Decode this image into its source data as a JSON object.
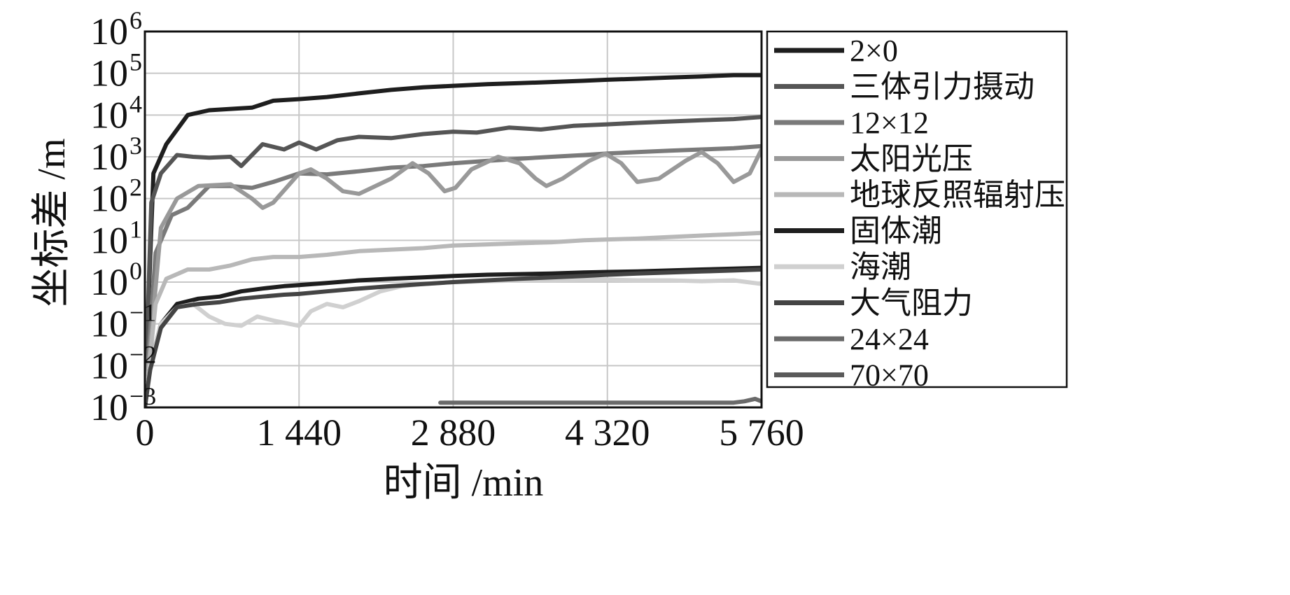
{
  "chart_data": {
    "type": "line",
    "title": "",
    "xlabel": "时间 /min",
    "ylabel": "坐标差 /m",
    "xlim": [
      0,
      5760
    ],
    "ylim": [
      0.001,
      1000000
    ],
    "yscale": "log",
    "grid": true,
    "legend_position": "outside-right",
    "x_ticks": [
      {
        "value": 0,
        "label": "0"
      },
      {
        "value": 1440,
        "label": "1 440"
      },
      {
        "value": 2880,
        "label": "2 880"
      },
      {
        "value": 4320,
        "label": "4 320"
      },
      {
        "value": 5760,
        "label": "5 760"
      }
    ],
    "y_ticks": [
      {
        "value": 0.001,
        "base": "10",
        "exp": "−3"
      },
      {
        "value": 0.01,
        "base": "10",
        "exp": "−2"
      },
      {
        "value": 0.1,
        "base": "10",
        "exp": "−1"
      },
      {
        "value": 1,
        "base": "10",
        "exp": "0"
      },
      {
        "value": 10,
        "base": "10",
        "exp": "1"
      },
      {
        "value": 100,
        "base": "10",
        "exp": "2"
      },
      {
        "value": 1000,
        "base": "10",
        "exp": "3"
      },
      {
        "value": 10000,
        "base": "10",
        "exp": "4"
      },
      {
        "value": 100000,
        "base": "10",
        "exp": "5"
      },
      {
        "value": 1000000,
        "base": "10",
        "exp": "6"
      }
    ],
    "series": [
      {
        "name": "2×0",
        "color": "#1e1e1e",
        "x": [
          0,
          80,
          200,
          400,
          600,
          800,
          1000,
          1200,
          1440,
          1700,
          2000,
          2300,
          2600,
          2880,
          3200,
          3500,
          3800,
          4100,
          4320,
          4600,
          4900,
          5200,
          5500,
          5760
        ],
        "y": [
          0.002,
          400,
          2000,
          10000,
          13000,
          14000,
          15000,
          22000,
          24000,
          27000,
          33000,
          40000,
          46000,
          50000,
          55000,
          58000,
          62000,
          66000,
          70000,
          74000,
          79000,
          84000,
          90000,
          90000
        ]
      },
      {
        "name": "三体引力摄动",
        "color": "#555555",
        "x": [
          0,
          60,
          150,
          300,
          450,
          600,
          800,
          900,
          1000,
          1100,
          1300,
          1440,
          1600,
          1800,
          2000,
          2300,
          2600,
          2880,
          3100,
          3400,
          3700,
          4000,
          4320,
          4600,
          4900,
          5200,
          5500,
          5760
        ],
        "y": [
          0.001,
          80,
          400,
          1100,
          1000,
          950,
          1000,
          600,
          1100,
          2000,
          1500,
          2200,
          1500,
          2500,
          3000,
          2800,
          3500,
          4000,
          3800,
          5000,
          4500,
          5500,
          6000,
          6500,
          7000,
          7500,
          8000,
          9000
        ]
      },
      {
        "name": "12×12",
        "color": "#7a7a7a",
        "x": [
          0,
          100,
          250,
          400,
          600,
          800,
          1000,
          1200,
          1440,
          1700,
          2000,
          2300,
          2600,
          2880,
          3200,
          3500,
          3800,
          4100,
          4320,
          4600,
          4900,
          5200,
          5500,
          5760
        ],
        "y": [
          0.001,
          5,
          40,
          60,
          200,
          200,
          180,
          250,
          400,
          380,
          450,
          550,
          600,
          700,
          800,
          900,
          1000,
          1100,
          1200,
          1300,
          1400,
          1500,
          1600,
          1800
        ]
      },
      {
        "name": "太阳光压",
        "color": "#999999",
        "x": [
          0,
          150,
          300,
          500,
          800,
          1000,
          1100,
          1200,
          1440,
          1550,
          1700,
          1850,
          2000,
          2300,
          2500,
          2650,
          2800,
          2900,
          3050,
          3300,
          3500,
          3650,
          3750,
          3900,
          4150,
          4300,
          4450,
          4600,
          4800,
          5050,
          5200,
          5350,
          5500,
          5650,
          5760
        ],
        "y": [
          0.001,
          20,
          100,
          200,
          220,
          100,
          60,
          80,
          400,
          500,
          300,
          150,
          130,
          300,
          700,
          400,
          150,
          180,
          500,
          1000,
          700,
          300,
          200,
          300,
          800,
          1200,
          700,
          250,
          300,
          800,
          1300,
          700,
          250,
          400,
          1500
        ]
      },
      {
        "name": "地球反照辐射压",
        "color": "#b8b8b8",
        "x": [
          0,
          100,
          200,
          400,
          600,
          800,
          1000,
          1200,
          1440,
          1700,
          2000,
          2300,
          2600,
          2880,
          3200,
          3500,
          3800,
          4100,
          4320,
          4600,
          4900,
          5200,
          5500,
          5760
        ],
        "y": [
          0.001,
          0.3,
          1.2,
          2.0,
          2.0,
          2.5,
          3.5,
          4.0,
          4.0,
          4.5,
          5.5,
          6.0,
          6.5,
          7.5,
          8.0,
          8.5,
          9.0,
          10,
          10.5,
          11,
          12,
          13,
          14,
          15
        ]
      },
      {
        "name": "固体潮",
        "color": "#1e1e1e",
        "x": [
          0,
          50,
          150,
          300,
          500,
          700,
          900,
          1100,
          1300,
          1440,
          1700,
          2000,
          2300,
          2600,
          2880,
          3200,
          3500,
          3800,
          4100,
          4320,
          4600,
          4900,
          5200,
          5500,
          5760
        ],
        "y": [
          0.001,
          0.01,
          0.1,
          0.3,
          0.4,
          0.45,
          0.6,
          0.7,
          0.8,
          0.85,
          0.95,
          1.1,
          1.2,
          1.3,
          1.4,
          1.5,
          1.55,
          1.6,
          1.7,
          1.75,
          1.8,
          1.9,
          2.0,
          2.1,
          2.2
        ]
      },
      {
        "name": "海潮",
        "color": "#d0d0d0",
        "x": [
          0,
          50,
          150,
          300,
          450,
          600,
          750,
          900,
          1050,
          1200,
          1350,
          1440,
          1550,
          1700,
          1850,
          2000,
          2200,
          2400,
          2600,
          2880,
          3200,
          3500,
          3800,
          4100,
          4320,
          4600,
          4900,
          5200,
          5500,
          5760
        ],
        "y": [
          0.001,
          0.01,
          0.1,
          0.25,
          0.3,
          0.15,
          0.1,
          0.09,
          0.15,
          0.12,
          0.1,
          0.09,
          0.2,
          0.3,
          0.25,
          0.35,
          0.6,
          0.8,
          0.9,
          1.0,
          1.05,
          1.1,
          1.1,
          1.15,
          1.15,
          1.1,
          1.1,
          1.05,
          1.1,
          0.9
        ]
      },
      {
        "name": "大气阻力",
        "color": "#444444",
        "x": [
          0,
          50,
          150,
          300,
          500,
          700,
          900,
          1100,
          1300,
          1440,
          1700,
          2000,
          2300,
          2600,
          2880,
          3200,
          3500,
          3800,
          4100,
          4320,
          4600,
          4900,
          5200,
          5500,
          5760
        ],
        "y": [
          0.001,
          0.008,
          0.08,
          0.25,
          0.3,
          0.33,
          0.4,
          0.45,
          0.5,
          0.52,
          0.6,
          0.7,
          0.8,
          0.9,
          1.0,
          1.1,
          1.2,
          1.3,
          1.4,
          1.5,
          1.6,
          1.7,
          1.8,
          1.9,
          2.0
        ]
      },
      {
        "name": "24×24",
        "color": "#6a6a6a",
        "x": [
          2760,
          2860,
          3400,
          3900,
          4000,
          4150,
          4300,
          4450,
          4600,
          4750,
          4900,
          5050,
          5200,
          5350,
          5500,
          5600,
          5700,
          5760
        ],
        "y": [
          0.0013,
          0.0013,
          0.0013,
          0.0013,
          0.0013,
          0.0013,
          0.0013,
          0.0013,
          0.0013,
          0.0013,
          0.0013,
          0.0013,
          0.0013,
          0.0013,
          0.0013,
          0.0014,
          0.0016,
          0.0014
        ]
      },
      {
        "name": "70×70",
        "color": "#5a5a5a",
        "x": [],
        "y": []
      }
    ]
  }
}
